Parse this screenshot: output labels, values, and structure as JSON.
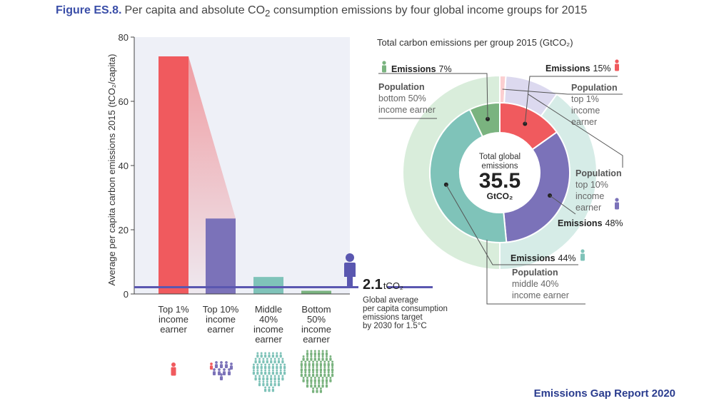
{
  "figure": {
    "label": "Figure ES.8.",
    "title_pre": "Per capita and absolute CO",
    "title_sub": "2",
    "title_post": " consumption emissions by four global income groups for 2015"
  },
  "report": "Emissions Gap Report 2020",
  "chart_data": [
    {
      "type": "bar",
      "ylabel": "Average per capita carbon emissions 2015 (tCO₂/capita)",
      "ylim": [
        0,
        80
      ],
      "yticks": [
        0,
        20,
        40,
        60,
        80
      ],
      "categories": [
        [
          "Top 1%",
          "income",
          "earner"
        ],
        [
          "Top 10%",
          "income",
          "earner"
        ],
        [
          "Middle",
          "40%",
          "income",
          "earner"
        ],
        [
          "Bottom",
          "50%",
          "income",
          "earner"
        ]
      ],
      "values": [
        74,
        23.5,
        5.3,
        1.0
      ],
      "colors": [
        "#f05a5e",
        "#7b72b9",
        "#7fc3b9",
        "#7ab37f"
      ],
      "target": {
        "value": 2.1,
        "value_label": "2.1",
        "unit": "tCO₂",
        "lines": [
          "Global average",
          "per capita consumption",
          "emissions target",
          "by 2030 for 1.5°C"
        ]
      },
      "people_icon_counts": [
        1,
        10,
        40,
        50
      ]
    },
    {
      "type": "pie",
      "title": "Total carbon emissions per group 2015 (GtCO₂)",
      "center": {
        "line1": "Total global",
        "line2": "emissions",
        "value": "35.5",
        "unit": "GtCO₂"
      },
      "inner": [
        {
          "name": "Top 1%",
          "percent": 15,
          "color": "#f05a5e"
        },
        {
          "name": "Top 10%",
          "percent": 33,
          "color": "#7b72b9"
        },
        {
          "name": "Middle 40%",
          "percent": 44,
          "color": "#7fc3b9"
        },
        {
          "name": "Bottom 50%",
          "percent": 7,
          "color": "#7ab37f"
        }
      ],
      "outer": [
        {
          "name": "Top 1%",
          "percent": 1,
          "color": "#fbcfd0"
        },
        {
          "name": "Top 10%",
          "percent": 9,
          "color": "#dcd9ef"
        },
        {
          "name": "Middle 40%",
          "percent": 40,
          "color": "#d6ece7"
        },
        {
          "name": "Bottom 50%",
          "percent": 50,
          "color": "#d9eddb"
        }
      ],
      "annotations": {
        "emissions_bottom": {
          "label": "Emissions",
          "value": "7%"
        },
        "emissions_top1": {
          "label": "Emissions",
          "value": "15%"
        },
        "emissions_top10": {
          "label": "Emissions",
          "value": "48%"
        },
        "emissions_middle": {
          "label": "Emissions",
          "value": "44%"
        },
        "pop_bottom": {
          "label": "Population",
          "lines": [
            "bottom 50%",
            "income earner"
          ]
        },
        "pop_top1": {
          "label": "Population",
          "lines": [
            "top 1%",
            "income",
            "earner"
          ]
        },
        "pop_top10": {
          "label": "Population",
          "lines": [
            "top 10%",
            "income",
            "earner"
          ]
        },
        "pop_middle": {
          "label": "Population",
          "lines": [
            "middle 40%",
            "income earner"
          ]
        }
      }
    }
  ]
}
